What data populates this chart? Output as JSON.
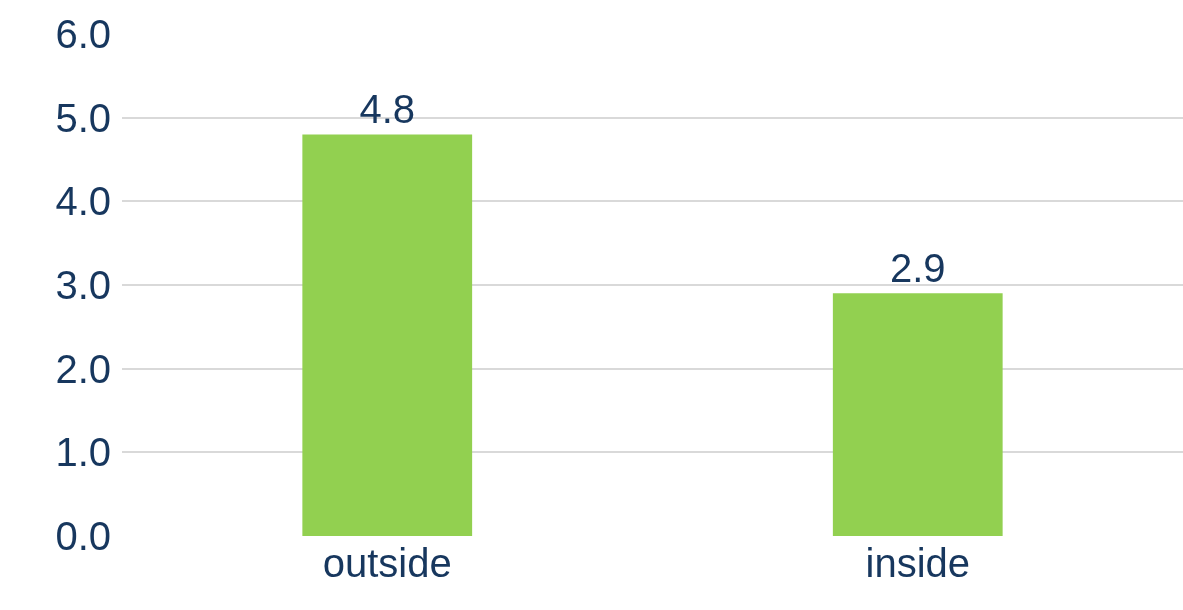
{
  "chart_data": {
    "type": "bar",
    "categories": [
      "outside",
      "inside"
    ],
    "values": [
      4.8,
      2.9
    ],
    "color": "#92d050",
    "ylim": [
      0,
      6
    ],
    "yticks": [
      {
        "value": 0,
        "label": "0.0"
      },
      {
        "value": 1,
        "label": "1.0"
      },
      {
        "value": 2,
        "label": "2.0"
      },
      {
        "value": 3,
        "label": "3.0"
      },
      {
        "value": 4,
        "label": "4.0"
      },
      {
        "value": 5,
        "label": "5.0"
      },
      {
        "value": 6,
        "label": "6.0"
      }
    ],
    "grid": "y",
    "data_labels": true
  }
}
